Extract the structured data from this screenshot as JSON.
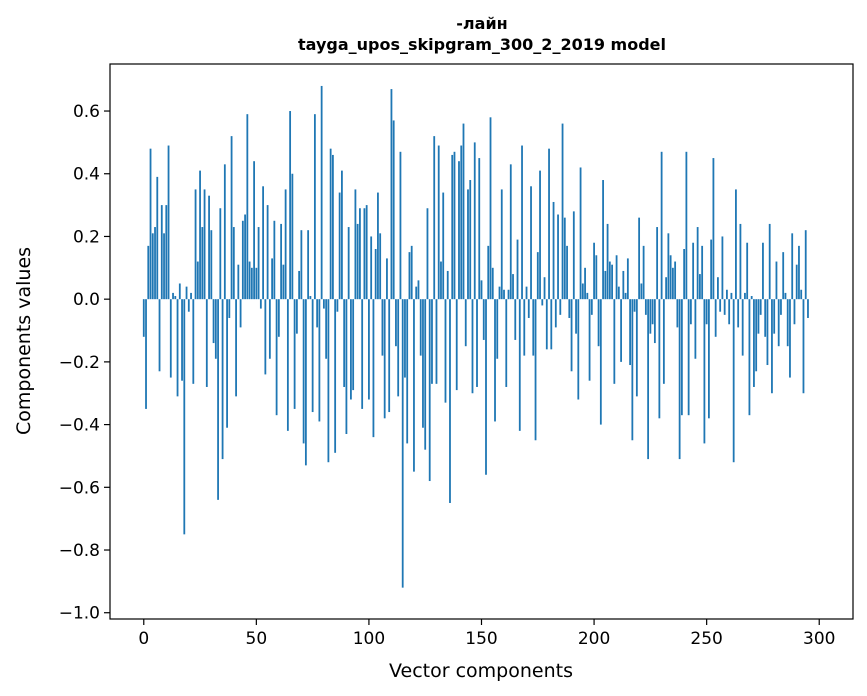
{
  "chart_data": {
    "type": "bar",
    "title_line1": "-лайн",
    "title_line2": "tayga_upos_skipgram_300_2_2019 model",
    "xlabel": "Vector components",
    "ylabel": "Components values",
    "xlim": [
      -15,
      315
    ],
    "ylim": [
      -1.02,
      0.75
    ],
    "xticks": [
      0,
      50,
      100,
      150,
      200,
      250,
      300
    ],
    "xtick_labels": [
      "0",
      "50",
      "100",
      "150",
      "200",
      "250",
      "300"
    ],
    "yticks": [
      -1.0,
      -0.8,
      -0.6,
      -0.4,
      -0.2,
      0.0,
      0.2,
      0.4,
      0.6
    ],
    "ytick_labels": [
      "−1.0",
      "−0.8",
      "−0.6",
      "−0.4",
      "−0.2",
      "0.0",
      "0.2",
      "0.4",
      "0.6"
    ],
    "bar_color": "#1f77b4",
    "values": [
      -0.12,
      -0.35,
      0.17,
      0.48,
      0.21,
      0.23,
      0.39,
      -0.23,
      0.3,
      0.21,
      0.3,
      0.49,
      -0.25,
      0.02,
      0.01,
      -0.31,
      0.05,
      -0.26,
      -0.75,
      0.04,
      -0.04,
      0.02,
      -0.27,
      0.35,
      0.12,
      0.41,
      0.23,
      0.35,
      -0.28,
      0.33,
      0.22,
      -0.14,
      -0.19,
      -0.64,
      0.29,
      -0.51,
      0.43,
      -0.41,
      -0.06,
      0.52,
      0.23,
      -0.31,
      0.11,
      -0.09,
      0.25,
      0.27,
      0.59,
      0.12,
      0.1,
      0.44,
      0.1,
      0.23,
      -0.03,
      0.36,
      -0.24,
      0.3,
      -0.19,
      0.13,
      0.25,
      -0.37,
      -0.12,
      0.24,
      0.11,
      0.35,
      -0.42,
      0.6,
      0.4,
      -0.35,
      -0.11,
      0.09,
      0.22,
      -0.46,
      -0.53,
      0.22,
      0.01,
      -0.36,
      0.59,
      -0.09,
      -0.39,
      0.68,
      -0.03,
      -0.19,
      -0.52,
      0.48,
      0.46,
      -0.49,
      -0.04,
      0.34,
      0.41,
      -0.28,
      -0.43,
      0.23,
      -0.32,
      -0.29,
      0.35,
      0.24,
      0.29,
      -0.35,
      0.29,
      0.3,
      -0.32,
      0.2,
      -0.44,
      0.16,
      0.34,
      0.21,
      -0.18,
      -0.38,
      0.13,
      -0.36,
      0.67,
      0.57,
      -0.15,
      -0.31,
      0.47,
      -0.92,
      -0.25,
      -0.46,
      0.15,
      0.17,
      -0.55,
      0.04,
      0.06,
      -0.18,
      -0.41,
      -0.48,
      0.29,
      -0.58,
      -0.27,
      0.52,
      -0.27,
      0.49,
      0.12,
      0.34,
      -0.33,
      0.09,
      -0.65,
      0.46,
      0.47,
      -0.29,
      0.44,
      0.49,
      0.56,
      -0.15,
      0.35,
      0.38,
      -0.3,
      0.5,
      -0.28,
      0.45,
      0.06,
      -0.13,
      -0.56,
      0.17,
      0.58,
      0.1,
      -0.39,
      -0.19,
      0.04,
      0.35,
      0.03,
      -0.28,
      0.03,
      0.43,
      0.08,
      -0.13,
      0.19,
      -0.42,
      0.49,
      -0.18,
      0.04,
      -0.06,
      0.36,
      -0.18,
      -0.45,
      0.15,
      0.41,
      -0.02,
      0.07,
      -0.16,
      0.48,
      -0.16,
      0.31,
      -0.09,
      0.27,
      -0.05,
      0.56,
      0.26,
      0.17,
      -0.06,
      -0.23,
      0.28,
      -0.11,
      -0.32,
      0.42,
      0.05,
      0.1,
      0.02,
      -0.26,
      -0.05,
      0.18,
      0.14,
      -0.15,
      -0.4,
      0.38,
      0.09,
      0.24,
      0.12,
      0.11,
      -0.27,
      0.14,
      0.04,
      -0.2,
      0.09,
      0.02,
      0.13,
      -0.21,
      -0.45,
      -0.04,
      -0.31,
      0.26,
      0.05,
      0.17,
      -0.05,
      -0.51,
      -0.11,
      -0.08,
      -0.14,
      0.23,
      -0.38,
      0.47,
      -0.27,
      0.07,
      0.21,
      0.14,
      0.1,
      0.12,
      -0.09,
      -0.51,
      -0.37,
      0.16,
      0.47,
      -0.37,
      -0.08,
      0.18,
      -0.19,
      0.23,
      0.08,
      0.17,
      -0.46,
      -0.08,
      -0.38,
      0.19,
      0.45,
      -0.12,
      0.07,
      -0.04,
      0.2,
      -0.05,
      0.03,
      -0.08,
      0.02,
      -0.52,
      0.35,
      -0.09,
      0.24,
      -0.18,
      0.02,
      0.18,
      -0.37,
      0.01,
      -0.28,
      -0.23,
      -0.11,
      -0.05,
      0.18,
      -0.12,
      -0.21,
      0.24,
      -0.3,
      -0.11,
      0.12,
      -0.15,
      -0.05,
      0.15,
      0.02,
      -0.15,
      -0.25,
      0.21,
      -0.08,
      0.11,
      0.17,
      0.03,
      -0.3,
      0.22,
      -0.06
    ]
  }
}
